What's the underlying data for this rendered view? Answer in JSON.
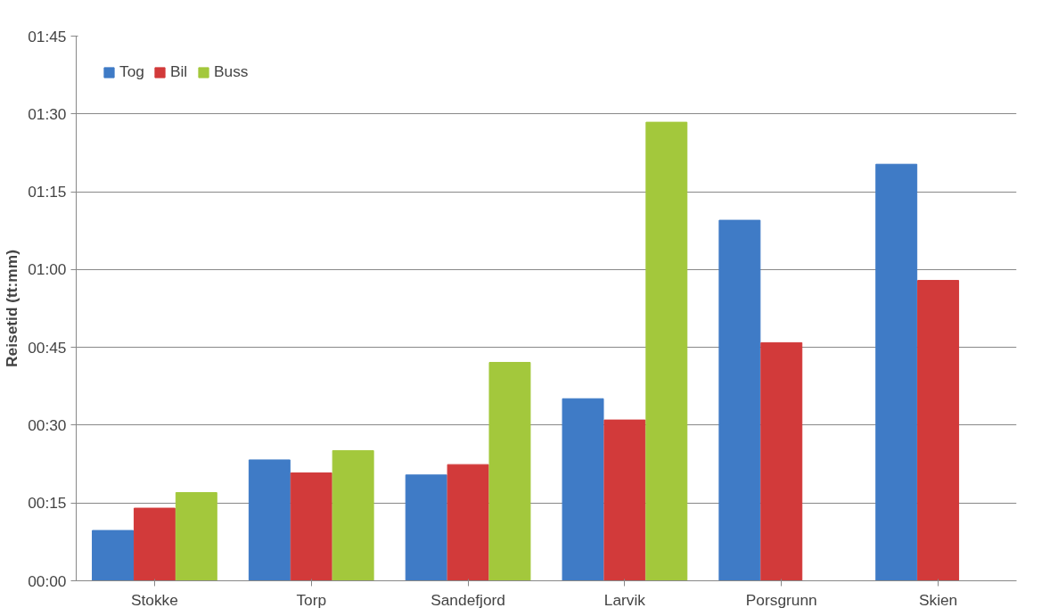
{
  "chart_data": {
    "type": "bar",
    "ylabel": "Reisetid (tt:mm)",
    "categories": [
      "Stokke",
      "Torp",
      "Sandefjord",
      "Larvik",
      "Porsgrunn",
      "Skien"
    ],
    "series": [
      {
        "name": "Tog",
        "color": "#3f7bc6",
        "values": [
          9.7,
          23.3,
          20.4,
          35.1,
          69.5,
          80.3
        ]
      },
      {
        "name": "Bil",
        "color": "#d23a3a",
        "values": [
          14,
          20.8,
          22.4,
          31,
          45.9,
          57.9
        ]
      },
      {
        "name": "Buss",
        "color": "#a3c83c",
        "values": [
          17,
          25.1,
          42.1,
          88.4,
          null,
          null
        ]
      }
    ],
    "ylim": [
      0,
      105
    ],
    "yticks": [
      {
        "value": 0,
        "label": "00:00"
      },
      {
        "value": 15,
        "label": "00:15"
      },
      {
        "value": 30,
        "label": "00:30"
      },
      {
        "value": 45,
        "label": "00:45"
      },
      {
        "value": 60,
        "label": "01:00"
      },
      {
        "value": 75,
        "label": "01:15"
      },
      {
        "value": 90,
        "label": "01:30"
      },
      {
        "value": 105,
        "label": "01:45"
      }
    ],
    "grid": "y",
    "legend": "top left"
  }
}
